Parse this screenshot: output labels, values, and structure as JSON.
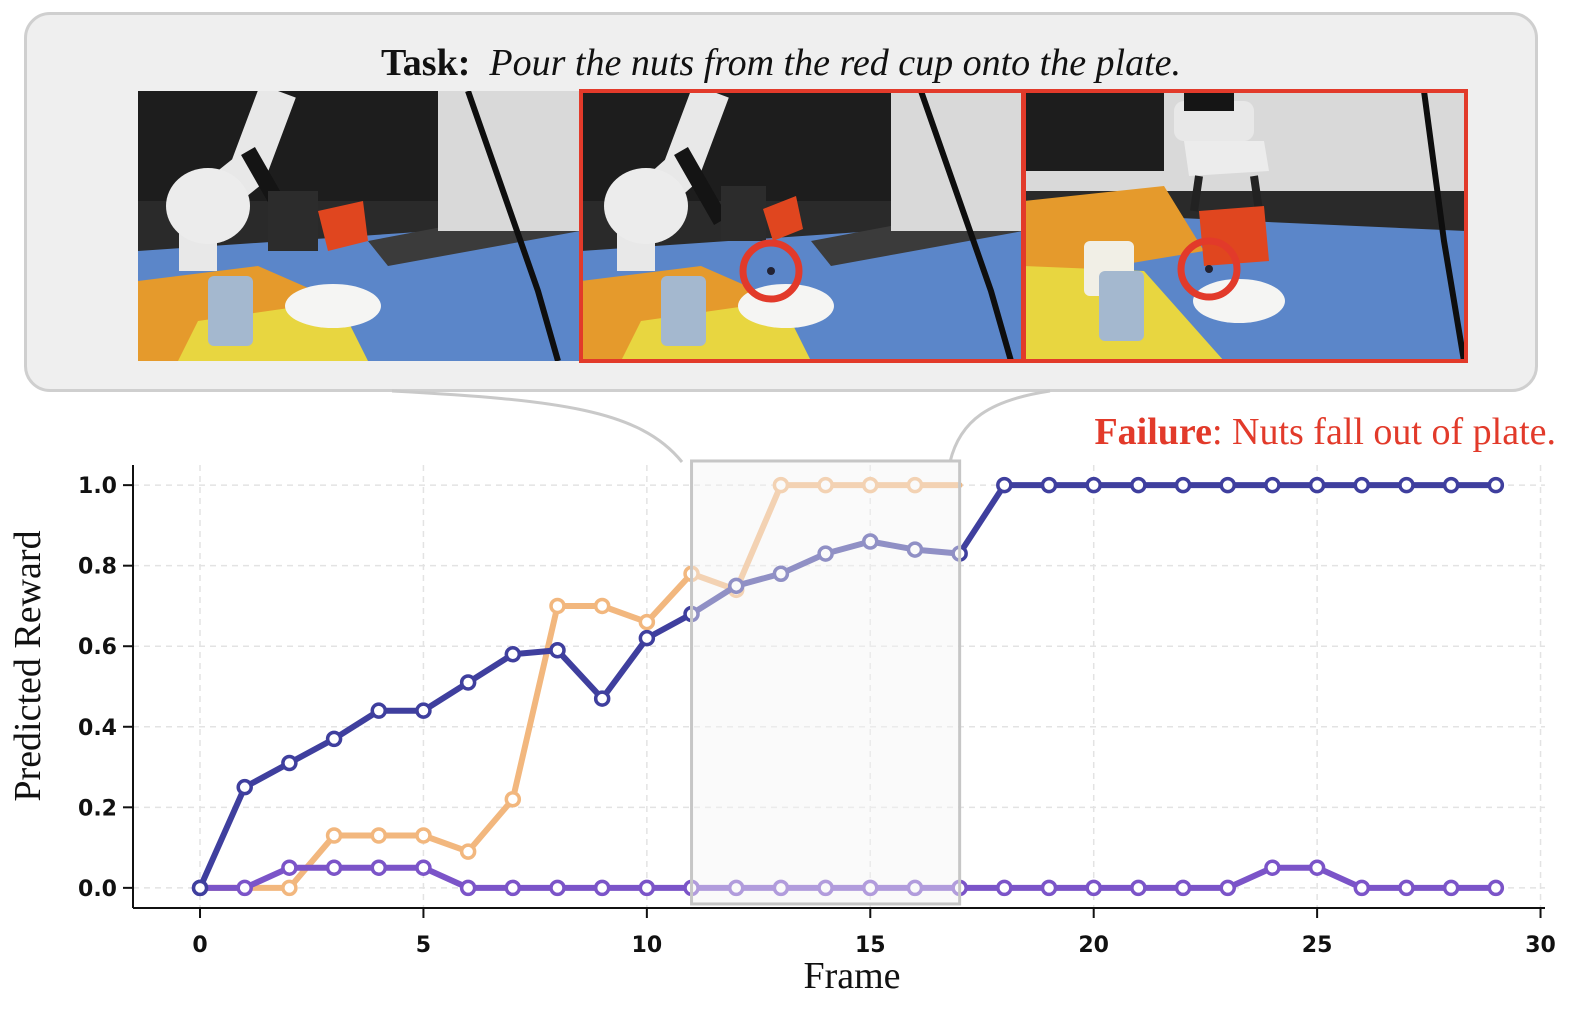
{
  "task": {
    "label": "Task:",
    "text": "Pour the nuts from the red cup onto the plate."
  },
  "frames": [
    {
      "highlighted": false
    },
    {
      "highlighted": true
    },
    {
      "highlighted": true
    }
  ],
  "annotation": {
    "bold": "Failure",
    "rest": ": Nuts fall out of plate.",
    "color": "#e23a2a"
  },
  "chart_data": {
    "type": "line",
    "xlabel": "Frame",
    "ylabel": "Predicted Reward",
    "xlim": [
      -1.5,
      30.1
    ],
    "ylim": [
      -0.05,
      1.05
    ],
    "xticks": [
      0,
      5,
      10,
      15,
      20,
      25,
      30
    ],
    "yticks": [
      0.0,
      0.2,
      0.4,
      0.6,
      0.8,
      1.0
    ],
    "grid": true,
    "highlight_region": {
      "x": [
        11,
        17
      ],
      "y": [
        -0.04,
        1.06
      ]
    },
    "series": [
      {
        "color": "#f2b77e",
        "x": [
          0,
          1,
          2,
          3,
          4,
          5,
          6,
          7,
          8,
          9,
          10,
          11,
          12,
          13,
          14,
          15,
          16,
          17
        ],
        "values": [
          0.0,
          0.0,
          0.0,
          0.13,
          0.13,
          0.13,
          0.09,
          0.22,
          0.7,
          0.7,
          0.66,
          0.78,
          0.74,
          1.0,
          1.0,
          1.0,
          1.0,
          1.0
        ],
        "marker_x": [
          2,
          3,
          4,
          5,
          6,
          7,
          8,
          9,
          10,
          11,
          12,
          13,
          14,
          15,
          16
        ]
      },
      {
        "color": "#7b54c8",
        "x": [
          0,
          1,
          2,
          3,
          4,
          5,
          6,
          7,
          8,
          9,
          10,
          11,
          12,
          13,
          14,
          15,
          16,
          17,
          18,
          19,
          20,
          21,
          22,
          23,
          24,
          25,
          26,
          27,
          28,
          29
        ],
        "values": [
          0.0,
          0.0,
          0.05,
          0.05,
          0.05,
          0.05,
          0.0,
          0.0,
          0.0,
          0.0,
          0.0,
          0.0,
          0.0,
          0.0,
          0.0,
          0.0,
          0.0,
          0.0,
          0.0,
          0.0,
          0.0,
          0.0,
          0.0,
          0.0,
          0.05,
          0.05,
          0.0,
          0.0,
          0.0,
          0.0
        ]
      },
      {
        "color": "#3f3f9e",
        "x": [
          0,
          1,
          2,
          3,
          4,
          5,
          6,
          7,
          8,
          9,
          10,
          11,
          12,
          13,
          14,
          15,
          16,
          17,
          18,
          19,
          20,
          21,
          22,
          23,
          24,
          25,
          26,
          27,
          28,
          29
        ],
        "values": [
          0.0,
          0.25,
          0.31,
          0.37,
          0.44,
          0.44,
          0.51,
          0.58,
          0.59,
          0.47,
          0.62,
          0.68,
          0.75,
          0.78,
          0.83,
          0.86,
          0.84,
          0.83,
          1.0,
          1.0,
          1.0,
          1.0,
          1.0,
          1.0,
          1.0,
          1.0,
          1.0,
          1.0,
          1.0,
          1.0
        ]
      }
    ]
  }
}
